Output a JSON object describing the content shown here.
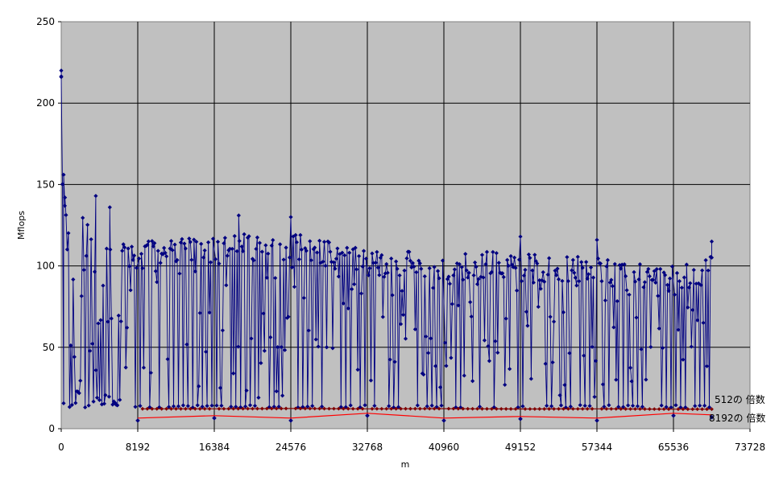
{
  "chart_data": {
    "type": "scatter",
    "xlabel": "m",
    "ylabel": "Mflops",
    "xlim": [
      0,
      73728
    ],
    "ylim": [
      0,
      250
    ],
    "x_ticks": [
      0,
      8192,
      16384,
      24576,
      32768,
      40960,
      49152,
      57344,
      65536,
      73728
    ],
    "y_ticks": [
      0,
      50,
      100,
      150,
      200,
      250
    ],
    "x_tick_labels": [
      "0",
      "8192",
      "16384",
      "24576",
      "32768",
      "40960",
      "49152",
      "57344",
      "65536",
      "73728"
    ],
    "y_tick_labels": [
      "0",
      "50",
      "100",
      "150",
      "200",
      "250"
    ],
    "grid": true,
    "plot_background": "#c0c0c0",
    "series": [
      {
        "color": "#000080",
        "marker": "diamond",
        "connected": true,
        "x_max": 69632,
        "upper_envelope": [
          [
            0,
            218
          ],
          [
            400,
            135
          ],
          [
            1500,
            125
          ],
          [
            3500,
            142
          ],
          [
            5500,
            135
          ],
          [
            6500,
            118
          ],
          [
            8192,
            115
          ],
          [
            16384,
            120
          ],
          [
            24576,
            122
          ],
          [
            32768,
            110
          ],
          [
            40960,
            110
          ],
          [
            49152,
            108
          ],
          [
            57344,
            105
          ],
          [
            65536,
            100
          ],
          [
            69632,
            108
          ]
        ],
        "lower_band": [
          [
            0,
            13
          ],
          [
            8192,
            13
          ],
          [
            69632,
            13
          ]
        ],
        "highlighted_points": [
          {
            "x": 0,
            "y": 220
          },
          {
            "x": 0,
            "y": 216
          },
          {
            "x": 256,
            "y": 156
          },
          {
            "x": 400,
            "y": 142
          },
          {
            "x": 3700,
            "y": 143
          },
          {
            "x": 5200,
            "y": 136
          },
          {
            "x": 19000,
            "y": 131
          },
          {
            "x": 24576,
            "y": 130
          },
          {
            "x": 49152,
            "y": 118
          },
          {
            "x": 57344,
            "y": 116
          },
          {
            "x": 69632,
            "y": 115
          }
        ]
      },
      {
        "name": "512の 倍数",
        "color": "#800000",
        "marker": "diamond",
        "step": 512,
        "points": [
          [
            8192,
            12.2
          ],
          [
            16384,
            12.2
          ],
          [
            24576,
            12.4
          ],
          [
            32768,
            12.2
          ],
          [
            40960,
            12.3
          ],
          [
            49152,
            12.1
          ],
          [
            57344,
            12.2
          ],
          [
            65536,
            12.0
          ],
          [
            69632,
            12.0
          ]
        ]
      },
      {
        "name": "8192の 倍数",
        "color": "#ff0000",
        "marker": "diamond",
        "step": 8192,
        "points": [
          [
            8192,
            5
          ],
          [
            16384,
            6.5
          ],
          [
            24576,
            5
          ],
          [
            32768,
            8
          ],
          [
            40960,
            5
          ],
          [
            49152,
            6
          ],
          [
            57344,
            5
          ],
          [
            65536,
            8
          ],
          [
            69632,
            7
          ]
        ]
      }
    ]
  }
}
